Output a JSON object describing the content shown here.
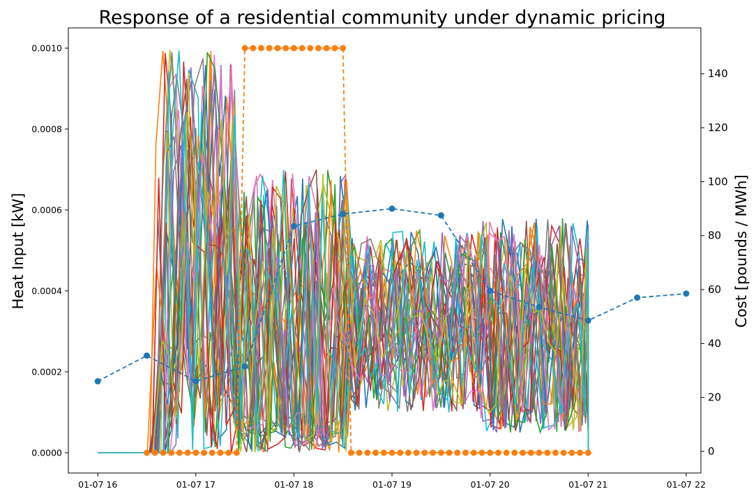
{
  "chart_data": {
    "type": "line",
    "title": "Response of a residential community under dynamic pricing",
    "ylabel": "Heat Input [kW]",
    "y2label": "Cost [pounds / MWh]",
    "ylim": [
      -5e-05,
      0.00105
    ],
    "y2lim": [
      -8,
      157
    ],
    "xlim_hours": [
      15.7,
      22.15
    ],
    "x_ticks": [
      "01-07 16",
      "01-07 17",
      "01-07 18",
      "01-07 19",
      "01-07 20",
      "01-07 21",
      "01-07 22"
    ],
    "y_ticks": [
      "0.0000",
      "0.0002",
      "0.0004",
      "0.0006",
      "0.0008",
      "0.0010"
    ],
    "y2_ticks": [
      "0",
      "20",
      "40",
      "60",
      "80",
      "100",
      "120",
      "140"
    ],
    "grid": false,
    "legend": "none",
    "price_series": {
      "axis": "right",
      "color": "#1f77b4",
      "style": "dashed-with-markers",
      "times": [
        "01-07 16:00",
        "01-07 16:30",
        "01-07 17:00",
        "01-07 17:30",
        "01-07 18:00",
        "01-07 18:30",
        "01-07 19:00",
        "01-07 19:30",
        "01-07 20:00",
        "01-07 20:30",
        "01-07 21:00",
        "01-07 21:30",
        "01-07 22:00"
      ],
      "values": [
        26,
        35.5,
        26,
        31.5,
        83.5,
        88,
        90,
        87.5,
        59.5,
        53.5,
        48.5,
        57,
        58.5
      ]
    },
    "peak_signal_series": {
      "axis": "left",
      "color": "#ff7f0e",
      "style": "dashed-with-markers",
      "times": [
        "01-07 16:30",
        "01-07 16:35",
        "01-07 16:40",
        "01-07 16:45",
        "01-07 16:50",
        "01-07 16:55",
        "01-07 17:00",
        "01-07 17:05",
        "01-07 17:10",
        "01-07 17:15",
        "01-07 17:20",
        "01-07 17:25",
        "01-07 17:30",
        "01-07 17:35",
        "01-07 17:40",
        "01-07 17:45",
        "01-07 17:50",
        "01-07 17:55",
        "01-07 18:00",
        "01-07 18:05",
        "01-07 18:10",
        "01-07 18:15",
        "01-07 18:20",
        "01-07 18:25",
        "01-07 18:30",
        "01-07 18:35",
        "01-07 18:40",
        "01-07 18:45",
        "01-07 18:50",
        "01-07 18:55",
        "01-07 19:00",
        "01-07 19:05",
        "01-07 19:10",
        "01-07 19:15",
        "01-07 19:20",
        "01-07 19:25",
        "01-07 19:30",
        "01-07 19:35",
        "01-07 19:40",
        "01-07 19:45",
        "01-07 19:50",
        "01-07 19:55",
        "01-07 20:00",
        "01-07 20:05",
        "01-07 20:10",
        "01-07 20:15",
        "01-07 20:20",
        "01-07 20:25",
        "01-07 20:30",
        "01-07 20:35",
        "01-07 20:40",
        "01-07 20:45",
        "01-07 20:50",
        "01-07 20:55",
        "01-07 21:00"
      ],
      "values": [
        0,
        0,
        0,
        0,
        0,
        0,
        0,
        0,
        0,
        0,
        0,
        0,
        0.001,
        0.001,
        0.001,
        0.001,
        0.001,
        0.001,
        0.001,
        0.001,
        0.001,
        0.001,
        0.001,
        0.001,
        0.001,
        0,
        0,
        0,
        0,
        0,
        0,
        0,
        0,
        0,
        0,
        0,
        0,
        0,
        0,
        0,
        0,
        0,
        0,
        0,
        0,
        0,
        0,
        0,
        0,
        0,
        0,
        0,
        0,
        0,
        0
      ]
    },
    "household_series_colors": [
      "#1f77b4",
      "#ff7f0e",
      "#2ca02c",
      "#d62728",
      "#9467bd",
      "#8c564b",
      "#e377c2",
      "#7f7f7f",
      "#bcbd22",
      "#17becf"
    ],
    "household_series_count": 30
  }
}
